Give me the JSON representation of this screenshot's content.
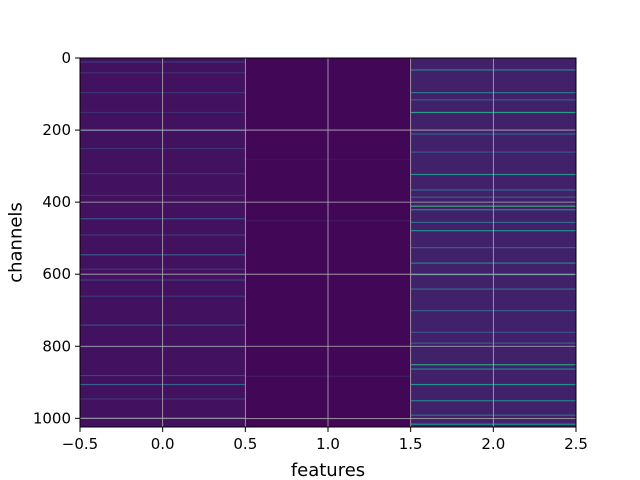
{
  "chart_data": {
    "type": "heatmap",
    "title": "",
    "xlabel": "features",
    "ylabel": "channels",
    "xlim": [
      -0.5,
      2.5
    ],
    "ylim": [
      1024,
      0
    ],
    "x_ticks": [
      -0.5,
      0.0,
      0.5,
      1.0,
      1.5,
      2.0,
      2.5
    ],
    "x_tick_labels": [
      "−0.5",
      "0.0",
      "0.5",
      "1.0",
      "1.5",
      "2.0",
      "2.5"
    ],
    "y_ticks": [
      0,
      200,
      400,
      600,
      800,
      1000
    ],
    "y_tick_labels": [
      "0",
      "200",
      "400",
      "600",
      "800",
      "1000"
    ],
    "grid": true,
    "colormap": "viridis",
    "background_color": "#440154",
    "columns": [
      {
        "feature": 0,
        "base_value": 0.05,
        "rows": [
          {
            "channel": 10,
            "value": 0.18
          },
          {
            "channel": 40,
            "value": 0.15
          },
          {
            "channel": 95,
            "value": 0.16
          },
          {
            "channel": 150,
            "value": 0.14
          },
          {
            "channel": 200,
            "value": 0.2
          },
          {
            "channel": 250,
            "value": 0.15
          },
          {
            "channel": 320,
            "value": 0.16
          },
          {
            "channel": 380,
            "value": 0.15
          },
          {
            "channel": 445,
            "value": 0.25
          },
          {
            "channel": 490,
            "value": 0.18
          },
          {
            "channel": 545,
            "value": 0.28
          },
          {
            "channel": 585,
            "value": 0.17
          },
          {
            "channel": 615,
            "value": 0.2
          },
          {
            "channel": 660,
            "value": 0.16
          },
          {
            "channel": 740,
            "value": 0.22
          },
          {
            "channel": 800,
            "value": 0.17
          },
          {
            "channel": 880,
            "value": 0.2
          },
          {
            "channel": 905,
            "value": 0.3
          },
          {
            "channel": 945,
            "value": 0.17
          },
          {
            "channel": 998,
            "value": 0.35
          }
        ]
      },
      {
        "feature": 1,
        "base_value": 0.02,
        "rows": [
          {
            "channel": 280,
            "value": 0.06
          },
          {
            "channel": 450,
            "value": 0.07
          },
          {
            "channel": 882,
            "value": 0.09
          },
          {
            "channel": 1000,
            "value": 0.08
          }
        ]
      },
      {
        "feature": 2,
        "base_value": 0.1,
        "rows": [
          {
            "channel": 32,
            "value": 0.45
          },
          {
            "channel": 95,
            "value": 0.4
          },
          {
            "channel": 115,
            "value": 0.3
          },
          {
            "channel": 150,
            "value": 0.55
          },
          {
            "channel": 210,
            "value": 0.3
          },
          {
            "channel": 260,
            "value": 0.25
          },
          {
            "channel": 322,
            "value": 0.5
          },
          {
            "channel": 365,
            "value": 0.35
          },
          {
            "channel": 385,
            "value": 0.3
          },
          {
            "channel": 410,
            "value": 0.6
          },
          {
            "channel": 420,
            "value": 0.45
          },
          {
            "channel": 455,
            "value": 0.35
          },
          {
            "channel": 478,
            "value": 0.5
          },
          {
            "channel": 525,
            "value": 0.3
          },
          {
            "channel": 568,
            "value": 0.45
          },
          {
            "channel": 600,
            "value": 0.4
          },
          {
            "channel": 640,
            "value": 0.35
          },
          {
            "channel": 700,
            "value": 0.3
          },
          {
            "channel": 760,
            "value": 0.25
          },
          {
            "channel": 790,
            "value": 0.3
          },
          {
            "channel": 850,
            "value": 0.55
          },
          {
            "channel": 862,
            "value": 0.45
          },
          {
            "channel": 905,
            "value": 0.5
          },
          {
            "channel": 950,
            "value": 0.45
          },
          {
            "channel": 990,
            "value": 0.35
          },
          {
            "channel": 1015,
            "value": 0.5
          }
        ]
      }
    ]
  }
}
